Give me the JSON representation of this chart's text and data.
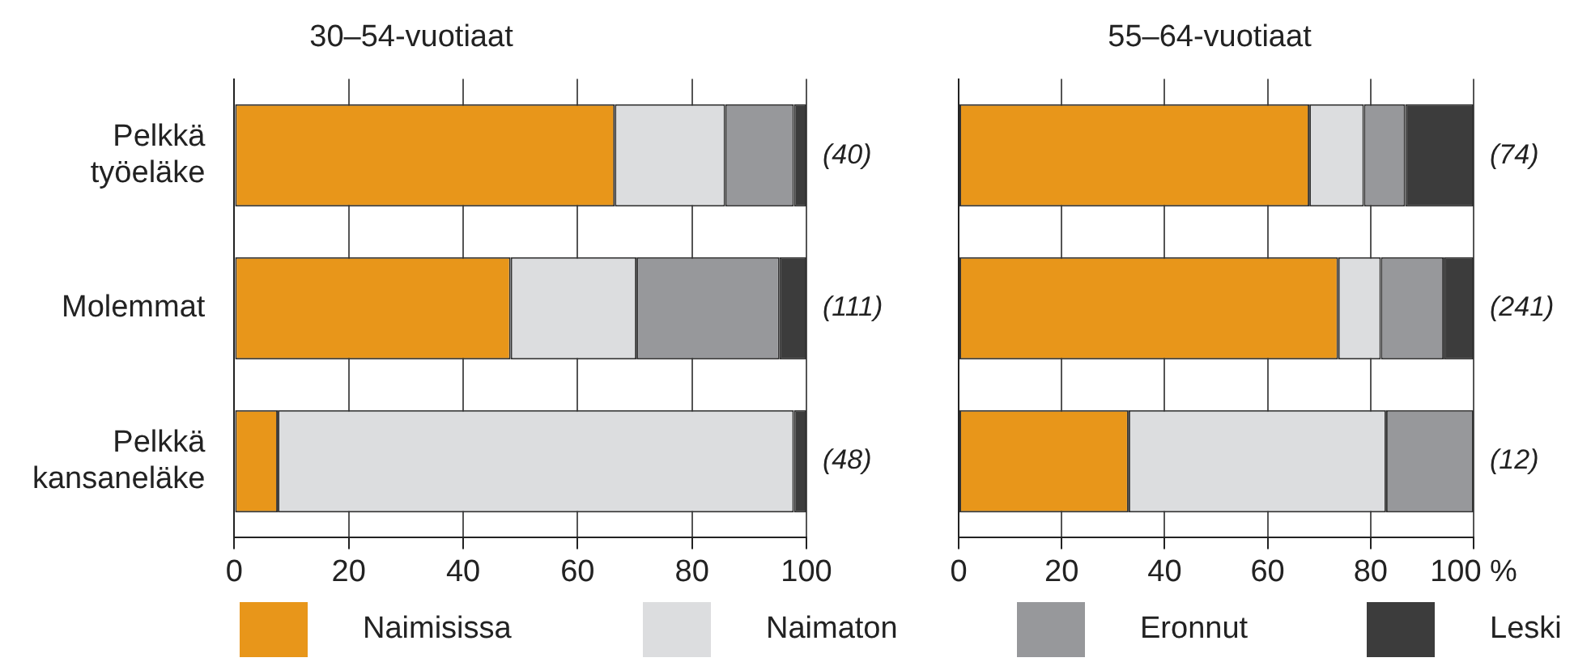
{
  "chart_data": [
    {
      "type": "bar",
      "title": "30–54-vuotiaat",
      "orientation": "horizontal",
      "stacked": true,
      "categories": [
        "Pelkkä työeläke",
        "Molemmat",
        "Pelkkä kansaneläke"
      ],
      "series": [
        {
          "name": "Naimisissa",
          "color": "#e8961a",
          "values": [
            66.5,
            48.3,
            7.6
          ]
        },
        {
          "name": "Naimaton",
          "color": "#dcdddf",
          "values": [
            19.3,
            22,
            90.2
          ]
        },
        {
          "name": "Eronnut",
          "color": "#97989b",
          "values": [
            12,
            25,
            0
          ]
        },
        {
          "name": "Leski",
          "color": "#3c3c3c",
          "values": [
            2.2,
            4.7,
            2.2
          ]
        }
      ],
      "xlim": [
        0,
        100
      ],
      "xticks": [
        0,
        20,
        40,
        60,
        80,
        100
      ],
      "grid": "x",
      "legend": "bottom",
      "annotations": [
        "(40)",
        "(111)",
        "(48)"
      ]
    },
    {
      "type": "bar",
      "title": "55–64-vuotiaat",
      "orientation": "horizontal",
      "stacked": true,
      "categories": [
        null,
        null,
        null
      ],
      "series": [
        {
          "name": "Naimisissa",
          "color": "#e8961a",
          "values": [
            68.1,
            73.7,
            33
          ]
        },
        {
          "name": "Naimaton",
          "color": "#dcdddf",
          "values": [
            10.6,
            8.3,
            50
          ]
        },
        {
          "name": "Eronnut",
          "color": "#97989b",
          "values": [
            8,
            12.2,
            17
          ]
        },
        {
          "name": "Leski",
          "color": "#3c3c3c",
          "values": [
            13.3,
            5.8,
            0
          ]
        }
      ],
      "xlim": [
        0,
        100
      ],
      "xticks": [
        0,
        20,
        40,
        60,
        80,
        {
          "value": 100,
          "label": "100 %"
        }
      ],
      "grid": "x",
      "tick_labels": "x",
      "legend": "bottom",
      "annotations": [
        "(74)",
        "(241)",
        "(12)"
      ]
    }
  ]
}
